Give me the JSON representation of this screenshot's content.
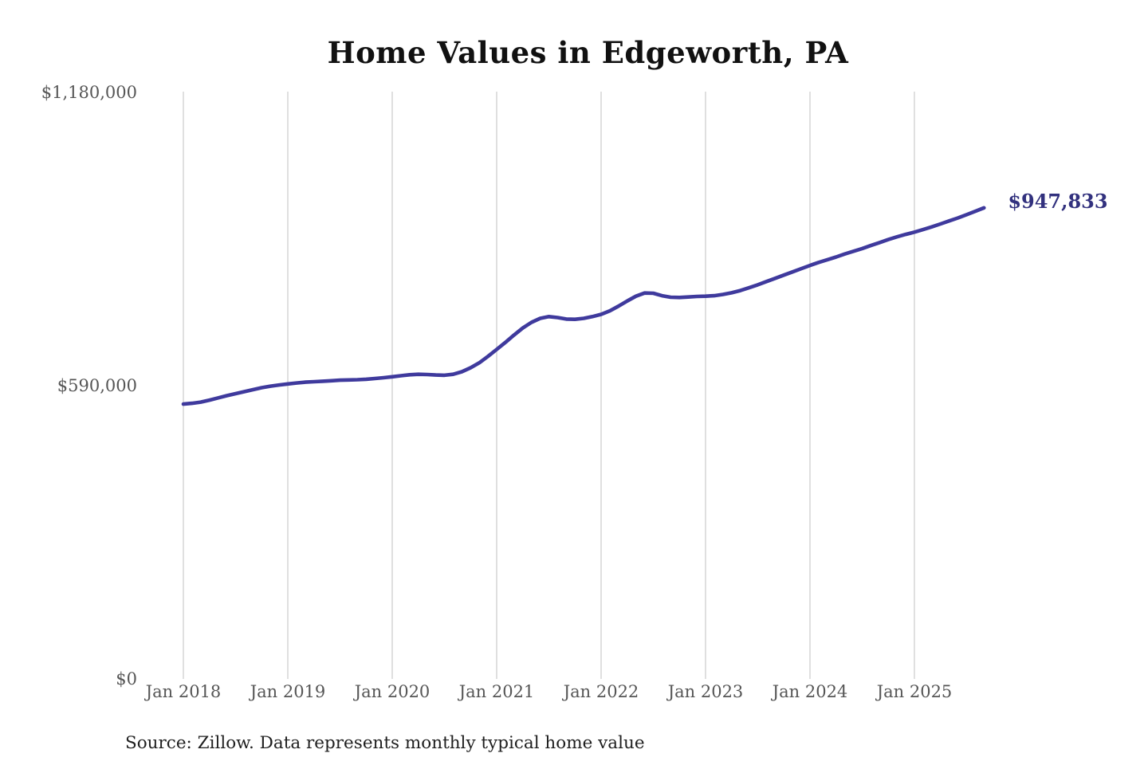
{
  "chart": {
    "title": "Home Values in Edgeworth, PA",
    "end_label": "$947,833",
    "source_note": "Source: Zillow. Data represents monthly typical home value",
    "colors": {
      "line": "#3f3a9d",
      "annotation": "#32317e",
      "grid": "#cacaca",
      "axis_text": "#565656",
      "title_text": "#111111",
      "source_text": "#1f1f1f"
    }
  },
  "chart_data": {
    "type": "line",
    "title": "Home Values in Edgeworth, PA",
    "unit": "USD",
    "frequency": "monthly",
    "x_start": "2018-01",
    "x_end": "2025-09",
    "final_value": 947833,
    "final_value_label": "$947,833",
    "ylim": [
      0,
      1180000
    ],
    "y_ticks": [
      0,
      590000,
      1180000
    ],
    "y_tick_labels": [
      "$0",
      "$590,000",
      "$1,180,000"
    ],
    "x_tick_labels": [
      "Jan 2018",
      "Jan 2019",
      "Jan 2020",
      "Jan 2021",
      "Jan 2022",
      "Jan 2023",
      "Jan 2024",
      "Jan 2025"
    ],
    "grid": "vertical-only",
    "legend_position": "none",
    "annotation": "$947,833 at end of series",
    "values": [
      553000,
      554500,
      557000,
      561000,
      565500,
      570000,
      574000,
      578000,
      582000,
      586000,
      589000,
      591500,
      593500,
      595500,
      597000,
      598000,
      599000,
      600000,
      601000,
      601500,
      602000,
      603000,
      604500,
      606000,
      608000,
      610000,
      612000,
      613000,
      612500,
      611500,
      611000,
      613000,
      618000,
      626000,
      636000,
      649000,
      663000,
      677000,
      692000,
      706000,
      717500,
      725500,
      729000,
      727000,
      724000,
      723500,
      725500,
      729000,
      733500,
      740500,
      750000,
      760500,
      770000,
      776500,
      776000,
      771000,
      768000,
      767500,
      768500,
      769500,
      770000,
      771000,
      773500,
      777000,
      781500,
      787000,
      793000,
      799500,
      806000,
      812500,
      819000,
      825500,
      832000,
      838000,
      843500,
      849000,
      855000,
      860500,
      866000,
      872000,
      878000,
      884000,
      889500,
      894500,
      899000,
      904000,
      909500,
      915500,
      921500,
      927500,
      934000,
      941000,
      947833
    ]
  }
}
